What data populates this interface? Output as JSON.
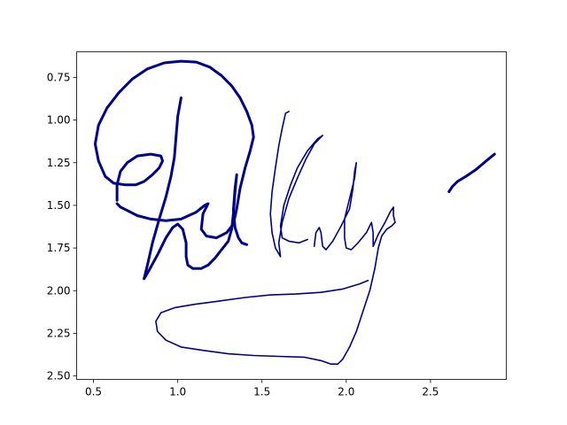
{
  "chart_data": {
    "type": "line",
    "title": "",
    "xlabel": "",
    "ylabel": "",
    "xlim": [
      0.4,
      2.95
    ],
    "ylim": [
      2.52,
      0.6
    ],
    "y_inverted": true,
    "grid": false,
    "xticks": [
      "0.5",
      "1.0",
      "1.5",
      "2.0",
      "2.5"
    ],
    "yticks": [
      "0.75",
      "1.00",
      "1.25",
      "1.50",
      "1.75",
      "2.00",
      "2.25",
      "2.50"
    ],
    "color": "#00008b",
    "strokes": [
      {
        "weight": "heavy",
        "points": [
          [
            0.64,
            1.47
          ],
          [
            0.64,
            1.38
          ],
          [
            0.66,
            1.3
          ],
          [
            0.7,
            1.25
          ],
          [
            0.76,
            1.21
          ],
          [
            0.84,
            1.2
          ],
          [
            0.9,
            1.21
          ],
          [
            0.91,
            1.24
          ],
          [
            0.89,
            1.28
          ],
          [
            0.85,
            1.32
          ],
          [
            0.8,
            1.36
          ],
          [
            0.75,
            1.38
          ],
          [
            0.69,
            1.38
          ],
          [
            0.62,
            1.37
          ],
          [
            0.57,
            1.33
          ],
          [
            0.53,
            1.24
          ],
          [
            0.51,
            1.14
          ],
          [
            0.53,
            1.03
          ],
          [
            0.58,
            0.93
          ],
          [
            0.65,
            0.84
          ],
          [
            0.73,
            0.76
          ],
          [
            0.82,
            0.7
          ],
          [
            0.92,
            0.665
          ],
          [
            1.02,
            0.655
          ],
          [
            1.11,
            0.66
          ],
          [
            1.19,
            0.69
          ],
          [
            1.26,
            0.74
          ],
          [
            1.32,
            0.8
          ],
          [
            1.37,
            0.87
          ],
          [
            1.41,
            0.95
          ],
          [
            1.44,
            1.03
          ],
          [
            1.45,
            1.1
          ],
          [
            1.43,
            1.18
          ],
          [
            1.4,
            1.28
          ],
          [
            1.37,
            1.4
          ],
          [
            1.35,
            1.52
          ],
          [
            1.33,
            1.61
          ],
          [
            1.29,
            1.66
          ],
          [
            1.23,
            1.69
          ],
          [
            1.17,
            1.68
          ],
          [
            1.14,
            1.64
          ],
          [
            1.15,
            1.55
          ],
          [
            1.18,
            1.49
          ],
          [
            1.16,
            1.5
          ],
          [
            1.11,
            1.54
          ],
          [
            1.02,
            1.58
          ],
          [
            0.93,
            1.59
          ],
          [
            0.84,
            1.58
          ],
          [
            0.76,
            1.56
          ],
          [
            0.7,
            1.53
          ],
          [
            0.66,
            1.51
          ],
          [
            0.64,
            1.49
          ]
        ]
      },
      {
        "weight": "heavy",
        "points": [
          [
            1.02,
            0.87
          ],
          [
            1.0,
            0.98
          ],
          [
            0.99,
            1.1
          ],
          [
            0.98,
            1.22
          ],
          [
            0.96,
            1.33
          ],
          [
            0.93,
            1.45
          ],
          [
            0.89,
            1.58
          ],
          [
            0.85,
            1.72
          ],
          [
            0.82,
            1.85
          ],
          [
            0.8,
            1.93
          ],
          [
            0.83,
            1.88
          ],
          [
            0.88,
            1.79
          ],
          [
            0.93,
            1.69
          ],
          [
            0.97,
            1.63
          ],
          [
            1.0,
            1.61
          ],
          [
            1.03,
            1.64
          ],
          [
            1.05,
            1.72
          ],
          [
            1.05,
            1.8
          ],
          [
            1.06,
            1.85
          ],
          [
            1.09,
            1.87
          ],
          [
            1.14,
            1.87
          ],
          [
            1.18,
            1.85
          ],
          [
            1.22,
            1.81
          ],
          [
            1.26,
            1.76
          ],
          [
            1.3,
            1.71
          ],
          [
            1.32,
            1.64
          ],
          [
            1.33,
            1.55
          ],
          [
            1.34,
            1.42
          ],
          [
            1.35,
            1.32
          ],
          [
            1.34,
            1.4
          ],
          [
            1.33,
            1.53
          ],
          [
            1.34,
            1.63
          ],
          [
            1.36,
            1.69
          ],
          [
            1.38,
            1.72
          ],
          [
            1.41,
            1.73
          ]
        ]
      },
      {
        "weight": "light",
        "points": [
          [
            1.66,
            0.95
          ],
          [
            1.64,
            0.96
          ],
          [
            1.62,
            1.05
          ],
          [
            1.6,
            1.15
          ],
          [
            1.58,
            1.28
          ],
          [
            1.56,
            1.42
          ],
          [
            1.55,
            1.55
          ],
          [
            1.56,
            1.66
          ],
          [
            1.58,
            1.75
          ],
          [
            1.61,
            1.8
          ],
          [
            1.6,
            1.72
          ],
          [
            1.62,
            1.6
          ],
          [
            1.66,
            1.46
          ],
          [
            1.71,
            1.34
          ],
          [
            1.76,
            1.23
          ],
          [
            1.81,
            1.14
          ],
          [
            1.86,
            1.09
          ],
          [
            1.83,
            1.11
          ],
          [
            1.77,
            1.18
          ],
          [
            1.71,
            1.28
          ],
          [
            1.67,
            1.38
          ],
          [
            1.63,
            1.5
          ],
          [
            1.61,
            1.62
          ],
          [
            1.62,
            1.69
          ],
          [
            1.66,
            1.71
          ],
          [
            1.72,
            1.72
          ],
          [
            1.77,
            1.7
          ]
        ]
      },
      {
        "weight": "light",
        "points": [
          [
            1.81,
            1.74
          ],
          [
            1.82,
            1.66
          ],
          [
            1.84,
            1.63
          ],
          [
            1.85,
            1.66
          ],
          [
            1.86,
            1.74
          ],
          [
            1.88,
            1.76
          ],
          [
            1.92,
            1.71
          ],
          [
            1.97,
            1.62
          ],
          [
            2.02,
            1.52
          ],
          [
            2.04,
            1.4
          ],
          [
            2.05,
            1.3
          ],
          [
            2.06,
            1.25
          ],
          [
            2.05,
            1.34
          ],
          [
            2.02,
            1.46
          ],
          [
            1.99,
            1.58
          ],
          [
            1.99,
            1.69
          ],
          [
            2.0,
            1.75
          ],
          [
            2.03,
            1.76
          ],
          [
            2.07,
            1.72
          ],
          [
            2.12,
            1.66
          ],
          [
            2.15,
            1.6
          ],
          [
            2.16,
            1.66
          ],
          [
            2.16,
            1.74
          ],
          [
            2.19,
            1.67
          ],
          [
            2.23,
            1.6
          ],
          [
            2.26,
            1.54
          ],
          [
            2.28,
            1.51
          ],
          [
            2.28,
            1.56
          ],
          [
            2.29,
            1.6
          ],
          [
            2.27,
            1.62
          ],
          [
            2.24,
            1.64
          ],
          [
            2.21,
            1.68
          ],
          [
            2.19,
            1.75
          ],
          [
            2.17,
            1.87
          ],
          [
            2.14,
            2.0
          ],
          [
            2.1,
            2.12
          ],
          [
            2.06,
            2.24
          ],
          [
            2.02,
            2.33
          ],
          [
            1.98,
            2.4
          ],
          [
            1.95,
            2.43
          ],
          [
            1.91,
            2.43
          ],
          [
            1.85,
            2.41
          ],
          [
            1.75,
            2.39
          ],
          [
            1.6,
            2.385
          ],
          [
            1.45,
            2.38
          ],
          [
            1.3,
            2.37
          ],
          [
            1.15,
            2.35
          ],
          [
            1.02,
            2.33
          ],
          [
            0.93,
            2.29
          ],
          [
            0.88,
            2.24
          ],
          [
            0.87,
            2.18
          ],
          [
            0.9,
            2.13
          ],
          [
            0.98,
            2.1
          ],
          [
            1.1,
            2.08
          ],
          [
            1.25,
            2.06
          ],
          [
            1.4,
            2.04
          ],
          [
            1.55,
            2.025
          ],
          [
            1.7,
            2.02
          ],
          [
            1.85,
            2.01
          ],
          [
            1.98,
            1.99
          ],
          [
            2.08,
            1.96
          ],
          [
            2.13,
            1.94
          ]
        ]
      },
      {
        "weight": "heavy",
        "points": [
          [
            2.61,
            1.42
          ],
          [
            2.63,
            1.39
          ],
          [
            2.66,
            1.36
          ],
          [
            2.71,
            1.33
          ],
          [
            2.77,
            1.29
          ],
          [
            2.83,
            1.24
          ],
          [
            2.88,
            1.2
          ]
        ]
      }
    ]
  }
}
